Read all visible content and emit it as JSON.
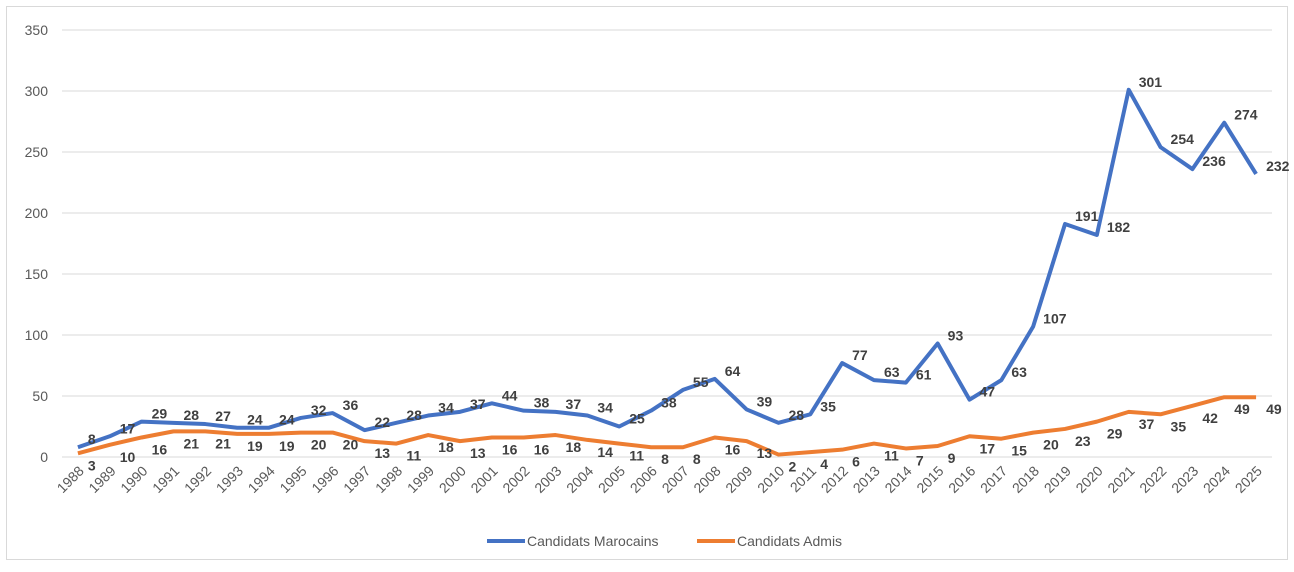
{
  "chart_data": {
    "type": "line",
    "categories": [
      "1988",
      "1989",
      "1990",
      "1991",
      "1992",
      "1993",
      "1994",
      "1995",
      "1996",
      "1997",
      "1998",
      "1999",
      "2000",
      "2001",
      "2002",
      "2003",
      "2004",
      "2005",
      "2006",
      "2007",
      "2008",
      "2009",
      "2010",
      "2011",
      "2012",
      "2013",
      "2014",
      "2015",
      "2016",
      "2017",
      "2018",
      "2019",
      "2020",
      "2021",
      "2022",
      "2023",
      "2024",
      "2025"
    ],
    "series": [
      {
        "name": "Candidats Marocains",
        "color": "#4472c4",
        "values": [
          8,
          17,
          29,
          28,
          27,
          24,
          24,
          32,
          36,
          22,
          28,
          34,
          37,
          44,
          38,
          37,
          34,
          25,
          38,
          55,
          64,
          39,
          28,
          35,
          77,
          63,
          61,
          93,
          47,
          63,
          107,
          191,
          182,
          301,
          254,
          236,
          274,
          232
        ]
      },
      {
        "name": "Candidats Admis",
        "color": "#ed7d31",
        "values": [
          3,
          10,
          16,
          21,
          21,
          19,
          19,
          20,
          20,
          13,
          11,
          18,
          13,
          16,
          16,
          18,
          14,
          11,
          8,
          8,
          16,
          13,
          2,
          4,
          6,
          11,
          7,
          9,
          17,
          15,
          20,
          23,
          29,
          37,
          35,
          42,
          49,
          49
        ]
      }
    ],
    "ylim": [
      0,
      350
    ],
    "yticks": [
      0,
      50,
      100,
      150,
      200,
      250,
      300,
      350
    ],
    "grid": true,
    "legend": "bottom"
  }
}
